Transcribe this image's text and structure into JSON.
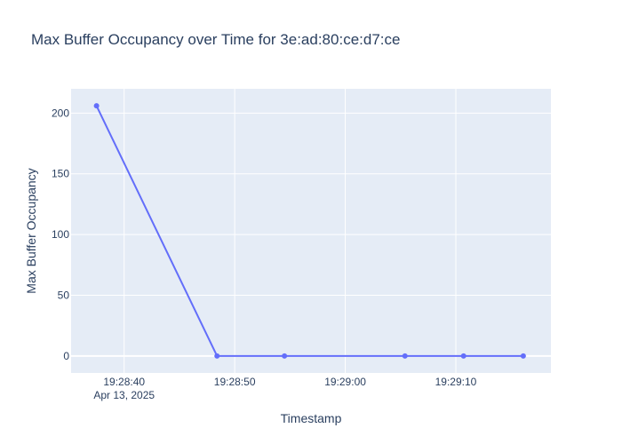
{
  "chart_data": {
    "type": "line",
    "title": "Max Buffer Occupancy over Time for 3e:ad:80:ce:d7:ce",
    "xlabel": "Timestamp",
    "ylabel": "Max Buffer Occupancy",
    "x_date": "Apr 13, 2025",
    "x": [
      "19:28:37.5",
      "19:28:48.4",
      "19:28:54.5",
      "19:29:05.4",
      "19:29:10.7",
      "19:29:16.1"
    ],
    "y": [
      206,
      0,
      0,
      0,
      0,
      0
    ],
    "xlim": [
      "19:28:35.2",
      "19:29:18.6"
    ],
    "ylim": [
      -14,
      220
    ],
    "xticks": [
      {
        "value": "19:28:40",
        "label": "19:28:40",
        "sublabel": "Apr 13, 2025"
      },
      {
        "value": "19:28:50",
        "label": "19:28:50",
        "sublabel": ""
      },
      {
        "value": "19:29:00",
        "label": "19:29:00",
        "sublabel": ""
      },
      {
        "value": "19:29:10",
        "label": "19:29:10",
        "sublabel": ""
      }
    ],
    "yticks": [
      0,
      50,
      100,
      150,
      200
    ],
    "grid": true,
    "legend": "none",
    "colors": {
      "line": "#636efa",
      "plot_background": "#e5ecf6",
      "grid": "#ffffff",
      "text": "#2a3f5f"
    }
  }
}
